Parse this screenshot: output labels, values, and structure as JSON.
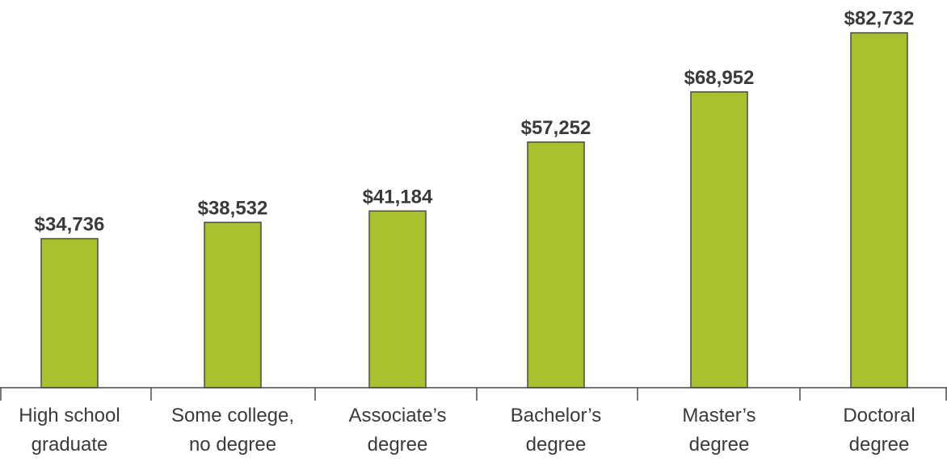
{
  "chart_data": {
    "type": "bar",
    "categories": [
      [
        "High school",
        "graduate"
      ],
      [
        "Some college,",
        "no degree"
      ],
      [
        "Associate’s",
        "degree"
      ],
      [
        "Bachelor’s",
        "degree"
      ],
      [
        "Master’s",
        "degree"
      ],
      [
        "Doctoral",
        "degree"
      ]
    ],
    "values": [
      34736,
      38532,
      41184,
      57252,
      68952,
      82732
    ],
    "value_labels": [
      "$34,736",
      "$38,532",
      "$41,184",
      "$57,252",
      "$68,952",
      "$82,732"
    ],
    "ylim": [
      0,
      83600
    ],
    "grid": false,
    "colors": {
      "bar": "#a8c22e",
      "outline": "#4a4a4a",
      "text": "#3a3a3a"
    }
  }
}
